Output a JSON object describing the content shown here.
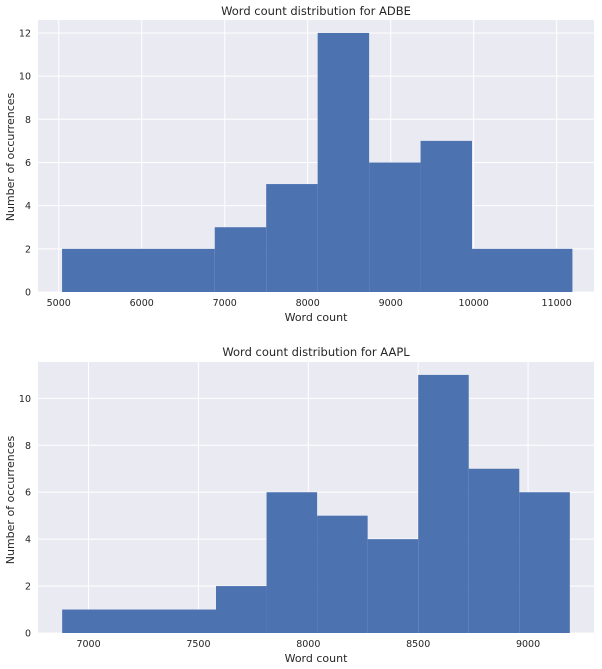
{
  "chart_data": [
    {
      "type": "histogram",
      "title": "Word count distribution for ADBE",
      "xlabel": "Word count",
      "ylabel": "Number of occurrences",
      "bar_color": "#4c72b0",
      "background": "#eaeaf2",
      "grid": true,
      "xlim": [
        4750,
        11450
      ],
      "ylim": [
        0,
        12.6
      ],
      "xticks": [
        5000,
        6000,
        7000,
        8000,
        9000,
        10000,
        11000
      ],
      "yticks": [
        0,
        2,
        4,
        6,
        8,
        10,
        12
      ],
      "bin_edges": [
        5040,
        6880,
        7500,
        8120,
        8740,
        9360,
        9980,
        11190
      ],
      "counts": [
        2,
        3,
        5,
        12,
        6,
        7,
        2
      ]
    },
    {
      "type": "histogram",
      "title": "Word count distribution for AAPL",
      "xlabel": "Word count",
      "ylabel": "Number of occurrences",
      "bar_color": "#4c72b0",
      "background": "#eaeaf2",
      "grid": true,
      "xlim": [
        6770,
        9300
      ],
      "ylim": [
        0,
        11.55
      ],
      "xticks": [
        7000,
        7500,
        8000,
        8500,
        9000
      ],
      "yticks": [
        0,
        2,
        4,
        6,
        8,
        10
      ],
      "bin_edges": [
        6880,
        7580,
        7810,
        8040,
        8270,
        8500,
        8730,
        8960,
        9190
      ],
      "counts": [
        1,
        2,
        6,
        5,
        4,
        11,
        7,
        6
      ]
    }
  ]
}
